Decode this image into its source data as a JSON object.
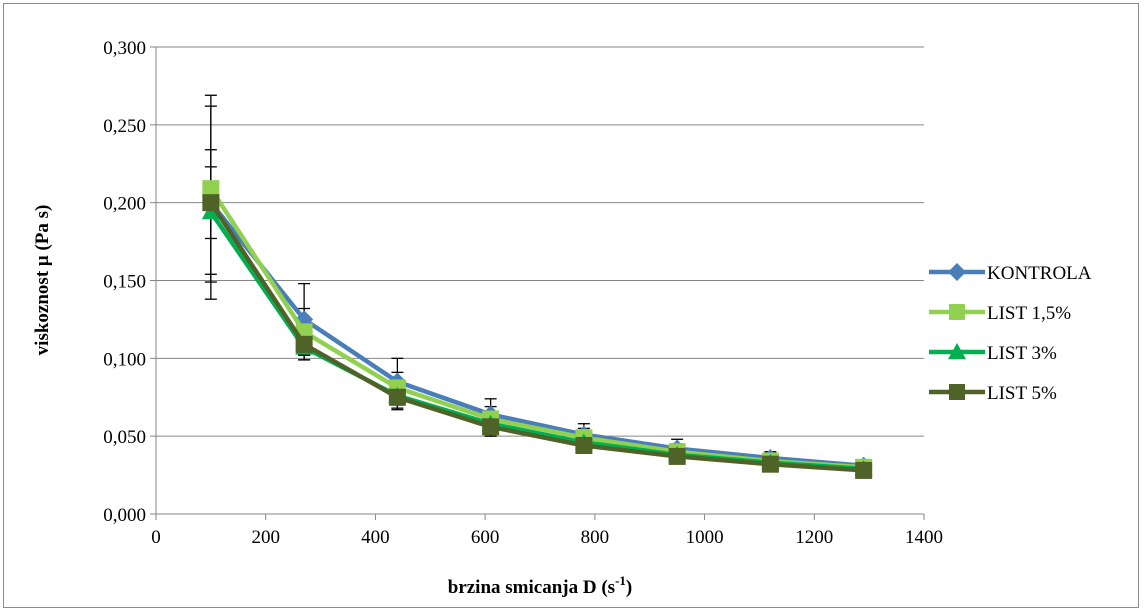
{
  "chart_data": {
    "type": "line",
    "title": "",
    "xlabel": "brzina smicanja D",
    "xlabel_unit": "(s",
    "xlabel_unit_sup": "-1",
    "xlabel_unit_close": ")",
    "ylabel": "viskoznost μ (Pa s)",
    "xlim": [
      0,
      1400
    ],
    "ylim": [
      0,
      0.3
    ],
    "xticks": [
      0,
      200,
      400,
      600,
      800,
      1000,
      1200,
      1400
    ],
    "xtick_labels": [
      "0",
      "200",
      "400",
      "600",
      "800",
      "1000",
      "1200",
      "1400"
    ],
    "yticks": [
      0,
      0.05,
      0.1,
      0.15,
      0.2,
      0.25,
      0.3
    ],
    "ytick_labels": [
      "0,000",
      "0,050",
      "0,100",
      "0,150",
      "0,200",
      "0,250",
      "0,300"
    ],
    "grid": "horizontal",
    "legend_position": "right",
    "x": [
      100,
      270,
      440,
      610,
      780,
      950,
      1120,
      1290
    ],
    "series": [
      {
        "name": "KONTROLA",
        "color": "#4a7ebb",
        "marker": "diamond",
        "values": [
          0.2,
          0.125,
          0.085,
          0.064,
          0.051,
          0.042,
          0.036,
          0.031
        ],
        "error": [
          0.062,
          0.023,
          0.015,
          0.01,
          0.007,
          0.006,
          0.004,
          0.003
        ]
      },
      {
        "name": "LIST 1,5%",
        "color": "#92d050",
        "marker": "square",
        "values": [
          0.209,
          0.117,
          0.081,
          0.061,
          0.049,
          0.04,
          0.034,
          0.03
        ],
        "error": [
          0.06,
          0.015,
          0.01,
          0.008,
          0.006,
          0.005,
          0.004,
          0.003
        ]
      },
      {
        "name": "LIST 3%",
        "color": "#00b050",
        "marker": "triangle",
        "values": [
          0.194,
          0.107,
          0.076,
          0.058,
          0.046,
          0.038,
          0.033,
          0.029
        ],
        "error": [
          0.04,
          0.008,
          0.008,
          0.006,
          0.005,
          0.004,
          0.003,
          0.003
        ]
      },
      {
        "name": "LIST 5%",
        "color": "#4f6228",
        "marker": "square",
        "values": [
          0.2,
          0.109,
          0.075,
          0.056,
          0.044,
          0.037,
          0.032,
          0.028
        ],
        "error": [
          0.023,
          0.01,
          0.008,
          0.006,
          0.005,
          0.004,
          0.003,
          0.003
        ]
      }
    ]
  }
}
